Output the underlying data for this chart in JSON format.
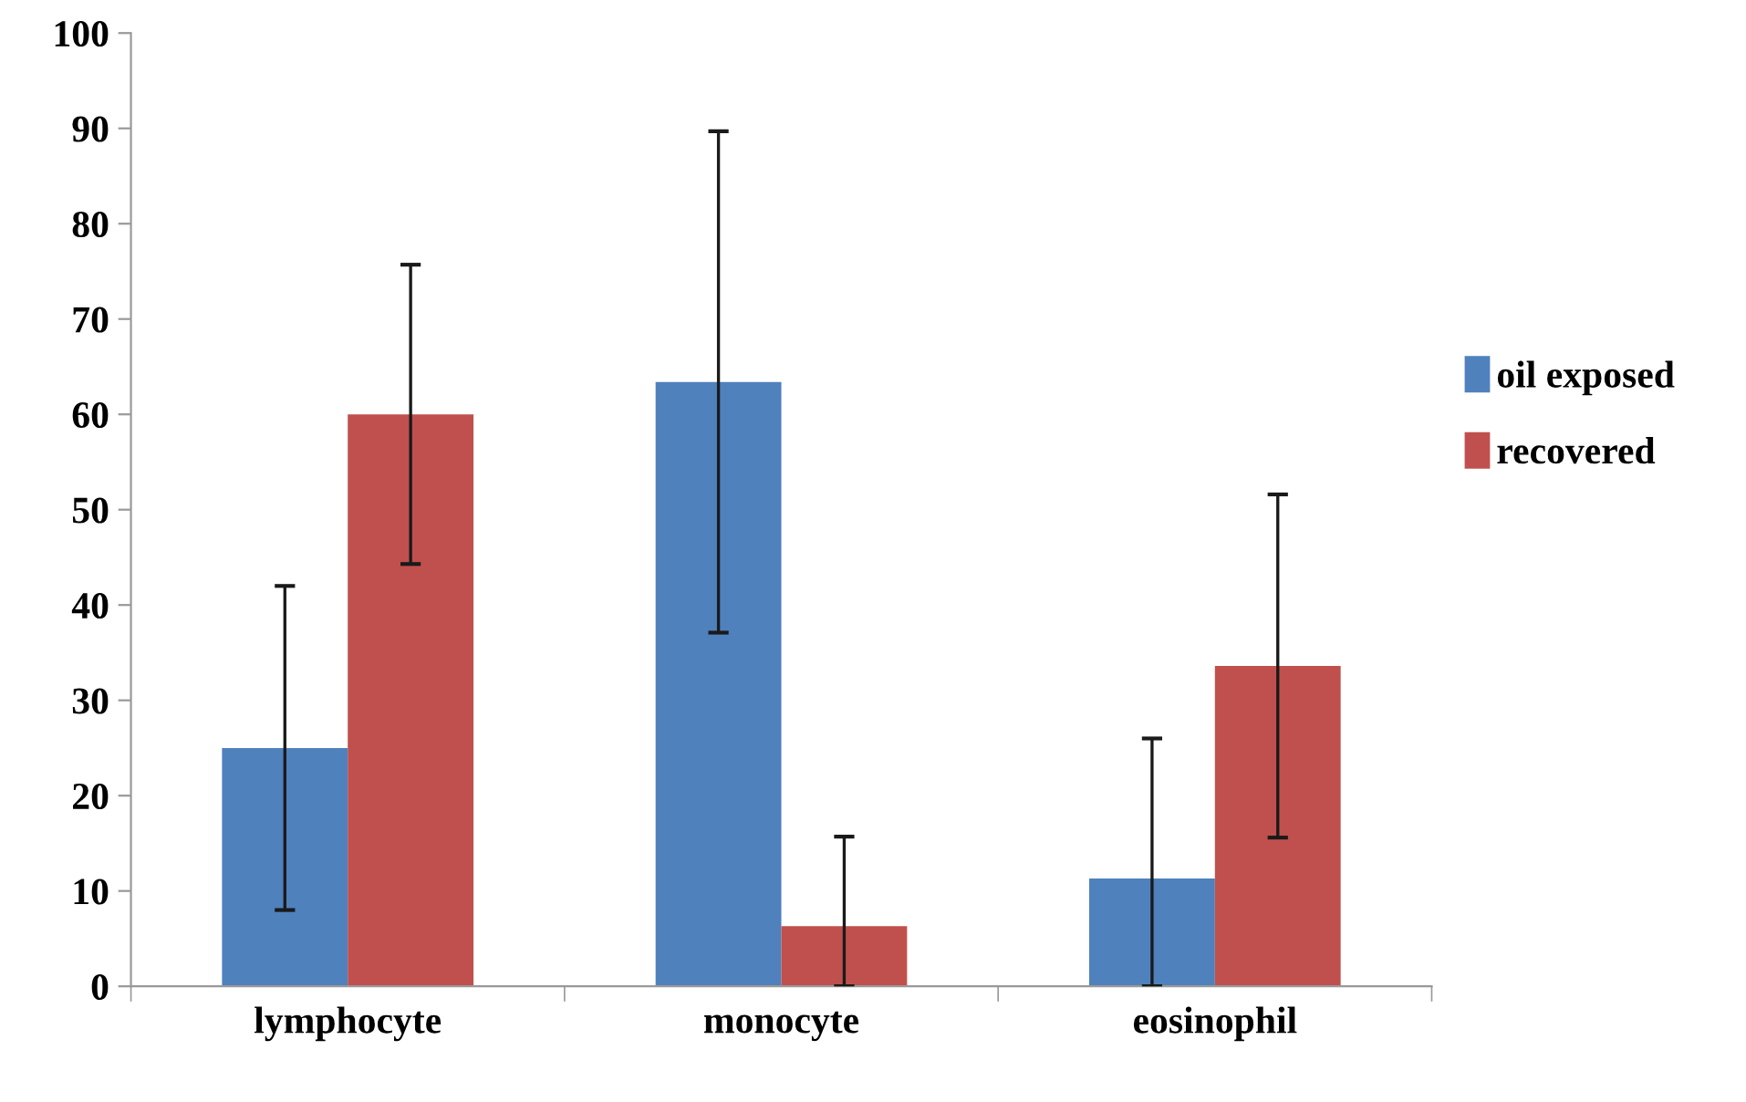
{
  "chart_data": {
    "type": "bar",
    "categories": [
      "lymphocyte",
      "monocyte",
      "eosinophil"
    ],
    "series": [
      {
        "name": "oil exposed",
        "color": "#4f81bd",
        "values": [
          25,
          63.4,
          11.3
        ],
        "errors": [
          17,
          26.3,
          [
            0,
            26
          ]
        ]
      },
      {
        "name": "recovered",
        "color": "#c0504d",
        "values": [
          60,
          6.3,
          33.6
        ],
        "errors": [
          15.7,
          [
            0,
            15.7
          ],
          18
        ]
      }
    ],
    "ylim": [
      0,
      100
    ],
    "yticks": [
      0,
      10,
      20,
      30,
      40,
      50,
      60,
      70,
      80,
      90,
      100
    ],
    "grid": false,
    "legend": "right"
  }
}
